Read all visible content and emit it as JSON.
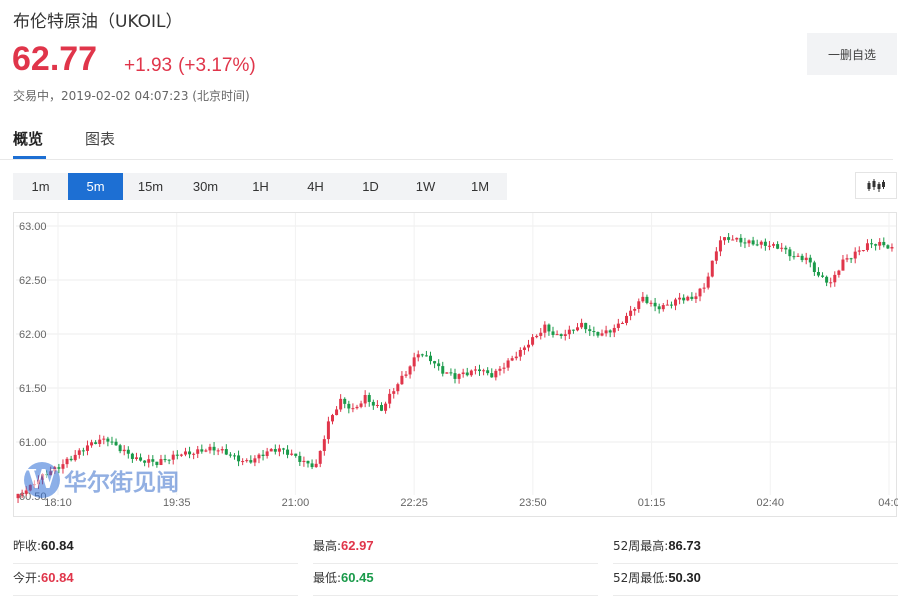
{
  "header": {
    "title": "布伦特原油（UKOIL）",
    "price": "62.77",
    "change": "+1.93",
    "change_pct": "(+3.17%)",
    "status": "交易中，2019-02-02 04:07:23 (北京时间)",
    "remove_button": "一删自选"
  },
  "tabs": [
    {
      "label": "概览",
      "active": true
    },
    {
      "label": "图表",
      "active": false
    }
  ],
  "periods": [
    {
      "label": "1m",
      "active": false
    },
    {
      "label": "5m",
      "active": true
    },
    {
      "label": "15m",
      "active": false
    },
    {
      "label": "30m",
      "active": false
    },
    {
      "label": "1H",
      "active": false
    },
    {
      "label": "4H",
      "active": false
    },
    {
      "label": "1D",
      "active": false
    },
    {
      "label": "1W",
      "active": false
    },
    {
      "label": "1M",
      "active": false
    }
  ],
  "chart_type_icon": "candlestick-icon",
  "watermark": {
    "logo": "W",
    "text": "华尔街见闻"
  },
  "colors": {
    "up": "#e0354a",
    "down": "#1a9a4a",
    "accent": "#1d6fd3"
  },
  "chart_data": {
    "type": "candlestick",
    "y_ticks": [
      "63.00",
      "62.50",
      "62.00",
      "61.50",
      "61.00",
      "60.50"
    ],
    "ylim": [
      60.45,
      63.0
    ],
    "x_ticks": [
      "18:10",
      "19:35",
      "21:00",
      "22:25",
      "23:50",
      "01:15",
      "02:40",
      "04:0"
    ],
    "grid": true,
    "close_path": [
      [
        0,
        60.5
      ],
      [
        3,
        60.55
      ],
      [
        8,
        60.74
      ],
      [
        12,
        60.86
      ],
      [
        18,
        60.95
      ],
      [
        22,
        61.02
      ],
      [
        26,
        60.95
      ],
      [
        30,
        60.82
      ],
      [
        34,
        60.77
      ],
      [
        37,
        60.85
      ],
      [
        40,
        60.93
      ],
      [
        44,
        60.92
      ],
      [
        48,
        60.9
      ],
      [
        52,
        60.88
      ],
      [
        56,
        60.85
      ],
      [
        60,
        60.88
      ],
      [
        64,
        60.9
      ],
      [
        68,
        60.88
      ],
      [
        71,
        60.83
      ],
      [
        73,
        60.8
      ],
      [
        76,
        61.15
      ],
      [
        79,
        61.35
      ],
      [
        82,
        61.3
      ],
      [
        85,
        61.45
      ],
      [
        89,
        61.3
      ],
      [
        92,
        61.45
      ],
      [
        95,
        61.62
      ],
      [
        98,
        61.85
      ],
      [
        101,
        61.8
      ],
      [
        104,
        61.65
      ],
      [
        107,
        61.57
      ],
      [
        110,
        61.62
      ],
      [
        113,
        61.7
      ],
      [
        116,
        61.65
      ],
      [
        120,
        61.72
      ],
      [
        123,
        61.8
      ],
      [
        126,
        61.95
      ],
      [
        129,
        62.1
      ],
      [
        132,
        62.0
      ],
      [
        135,
        62.0
      ],
      [
        138,
        62.05
      ],
      [
        141,
        62.0
      ],
      [
        144,
        62.05
      ],
      [
        147,
        62.1
      ],
      [
        150,
        62.18
      ],
      [
        153,
        62.3
      ],
      [
        156,
        62.25
      ],
      [
        159,
        62.3
      ],
      [
        162,
        62.35
      ],
      [
        165,
        62.3
      ],
      [
        168,
        62.4
      ],
      [
        170,
        62.65
      ],
      [
        172,
        62.9
      ],
      [
        175,
        62.92
      ],
      [
        178,
        62.85
      ],
      [
        181,
        62.8
      ],
      [
        184,
        62.8
      ],
      [
        187,
        62.82
      ],
      [
        190,
        62.75
      ],
      [
        193,
        62.7
      ],
      [
        196,
        62.5
      ],
      [
        199,
        62.45
      ],
      [
        202,
        62.7
      ],
      [
        205,
        62.78
      ],
      [
        208,
        62.82
      ],
      [
        211,
        62.8
      ],
      [
        214,
        62.77
      ]
    ]
  },
  "stats": [
    [
      {
        "label": "昨收:",
        "value": "60.84",
        "color": "neutral"
      },
      {
        "label": "最高:",
        "value": "62.97",
        "color": "up"
      },
      {
        "label": "52周最高:",
        "value": "86.73",
        "color": "neutral"
      }
    ],
    [
      {
        "label": "今开:",
        "value": "60.84",
        "color": "up"
      },
      {
        "label": "最低:",
        "value": "60.45",
        "color": "down"
      },
      {
        "label": "52周最低:",
        "value": "50.30",
        "color": "neutral"
      }
    ]
  ]
}
